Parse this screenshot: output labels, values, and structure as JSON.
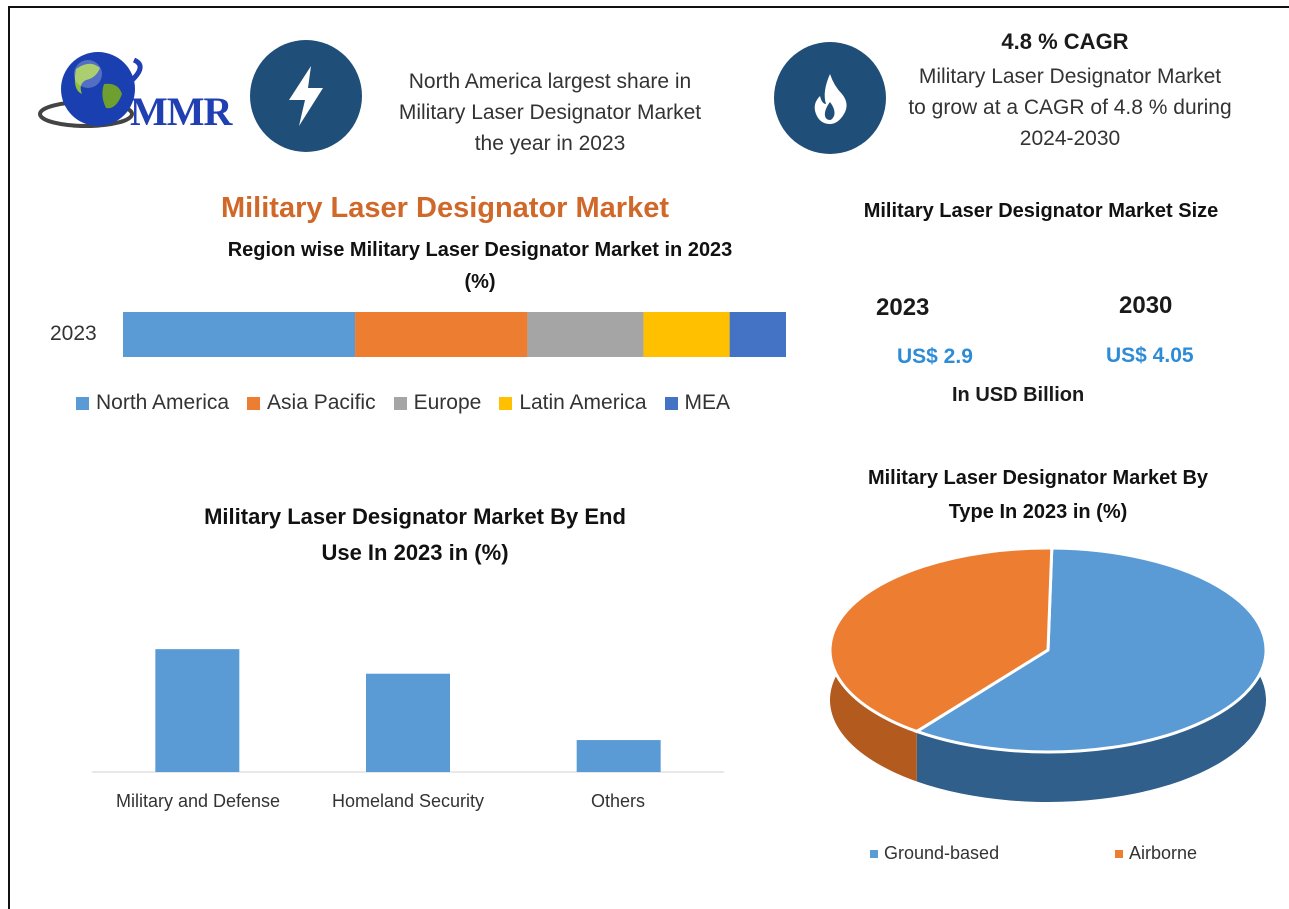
{
  "logo": {
    "text": "MMR"
  },
  "header": {
    "left_text_lines": [
      "North America largest share in",
      "Military Laser Designator Market",
      "the year in 2023"
    ],
    "cagr_title": "4.8 % CAGR",
    "right_text_lines": [
      "Military Laser Designator Market",
      "to grow at a CAGR of 4.8 % during",
      "2024-2030"
    ]
  },
  "icons": {
    "left": "lightning-icon",
    "right": "flame-icon"
  },
  "main_title": "Military Laser Designator Market",
  "size_panel": {
    "title": "Military Laser Designator Market Size",
    "year1": "2023",
    "year2": "2030",
    "value1": "US$ 2.9",
    "value2": "US$ 4.05",
    "unit": "In USD Billion"
  },
  "colors": {
    "north_america": "#5b9bd5",
    "asia_pacific": "#ed7d31",
    "europe": "#a5a5a5",
    "latin_america": "#ffc000",
    "mea": "#4472c4",
    "bar_blue": "#5b9bd5",
    "accent_orange": "#d0682a",
    "icon_navy": "#1f4e79"
  },
  "chart_data": [
    {
      "type": "bar",
      "orientation": "horizontal-stacked",
      "title": "Region wise Military  Laser Designator Market in 2023",
      "title_line2": "(%)",
      "categories": [
        "2023"
      ],
      "series": [
        {
          "name": "North America",
          "values": [
            35
          ]
        },
        {
          "name": "Asia Pacific",
          "values": [
            26
          ]
        },
        {
          "name": "Europe",
          "values": [
            17.5
          ]
        },
        {
          "name": "Latin America",
          "values": [
            13
          ]
        },
        {
          "name": "MEA",
          "values": [
            8.5
          ]
        }
      ],
      "xlim": [
        0,
        100
      ],
      "legend": "bottom"
    },
    {
      "type": "bar",
      "title": "Military Laser Designator Market By End",
      "title_line2": "Use In 2023 in (%)",
      "categories": [
        "Military and Defense",
        "Homeland Security",
        "Others"
      ],
      "values": [
        50,
        40,
        13
      ],
      "ylim": [
        0,
        70
      ],
      "grid": false
    },
    {
      "type": "pie",
      "title": "Military  Laser Designator Market By",
      "title_line2": "Type In 2023 in (%)",
      "categories": [
        "Ground-based",
        "Airborne"
      ],
      "values": [
        60,
        40
      ],
      "legend": "bottom"
    }
  ]
}
